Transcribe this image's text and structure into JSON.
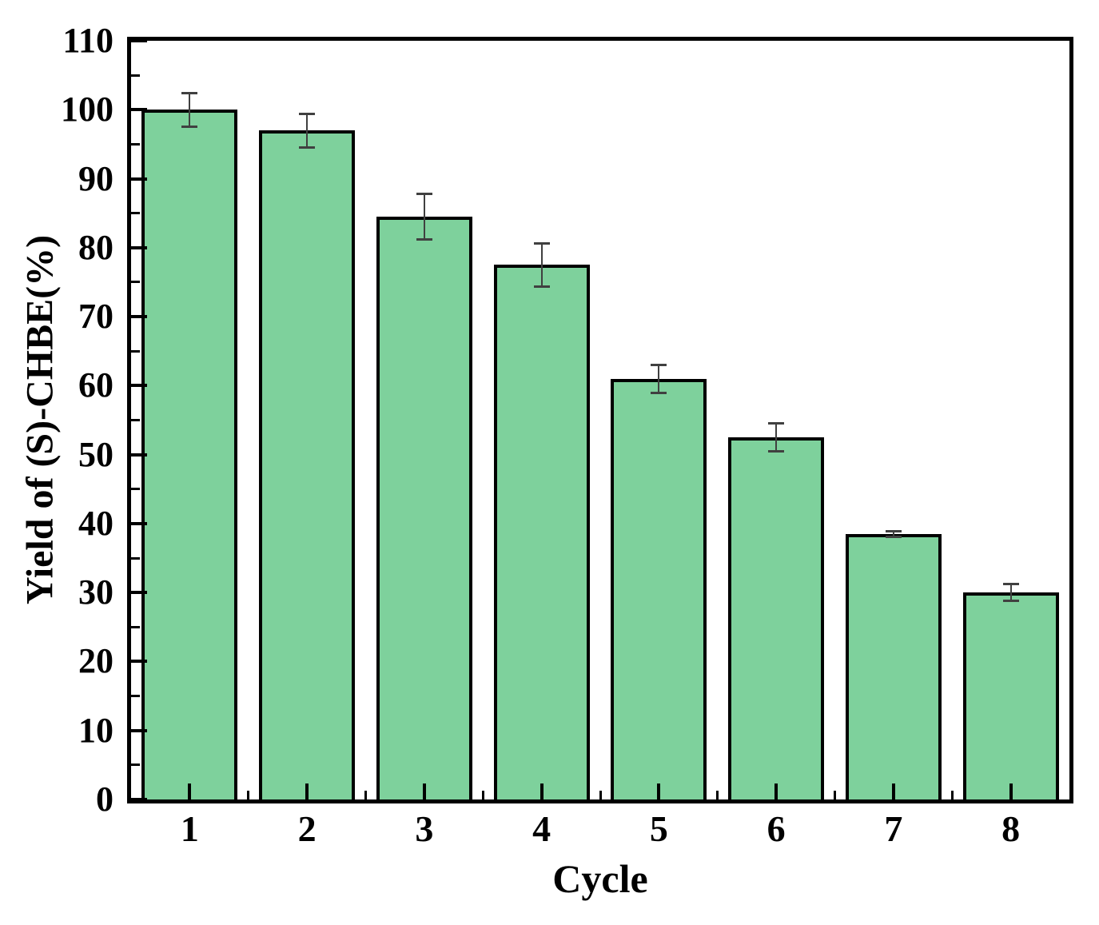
{
  "chart_data": {
    "type": "bar",
    "title": "",
    "xlabel": "Cycle",
    "ylabel": "Yield of (S)-CHBE(%)",
    "categories": [
      "1",
      "2",
      "3",
      "4",
      "5",
      "6",
      "7",
      "8"
    ],
    "values": [
      100,
      97,
      84.5,
      77.5,
      61,
      52.5,
      38.5,
      30
    ],
    "error_bars": [
      2.5,
      2.5,
      3.4,
      3.2,
      2.1,
      2.1,
      0.5,
      1.3
    ],
    "ylim": [
      0,
      110
    ],
    "yticks_major": [
      0,
      10,
      20,
      30,
      40,
      50,
      60,
      70,
      80,
      90,
      100,
      110
    ],
    "yticks_minor": [
      5,
      15,
      25,
      35,
      45,
      55,
      65,
      75,
      85,
      95,
      105
    ],
    "grid": false,
    "legend": null,
    "colors": {
      "bar_fill": "#7ed19c",
      "bar_border": "#000000",
      "error_bar": "#404040",
      "axis": "#000000",
      "background": "#ffffff"
    }
  }
}
